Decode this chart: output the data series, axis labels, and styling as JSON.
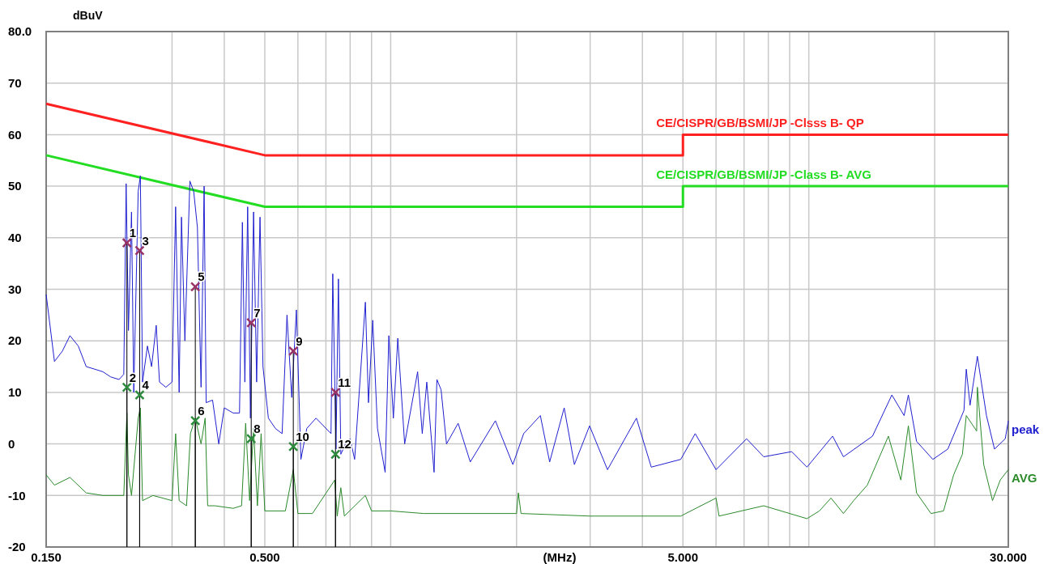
{
  "chart_data": {
    "type": "line",
    "xlabel": "(MHz)",
    "ylabel": "dBuV",
    "log": "x",
    "grid": true,
    "xlim": [
      0.15,
      30
    ],
    "ylim": [
      -20,
      80
    ],
    "xticks": [
      {
        "value": 0.15,
        "label": "0.150"
      },
      {
        "value": 0.3,
        "label": null
      },
      {
        "value": 0.4,
        "label": null
      },
      {
        "value": 0.5,
        "label": "0.500"
      },
      {
        "value": 0.6,
        "label": null
      },
      {
        "value": 0.7,
        "label": null
      },
      {
        "value": 0.8,
        "label": null
      },
      {
        "value": 0.9,
        "label": null
      },
      {
        "value": 1,
        "label": null
      },
      {
        "value": 2,
        "label": null
      },
      {
        "value": 3,
        "label": null
      },
      {
        "value": 4,
        "label": null
      },
      {
        "value": 5,
        "label": "5.000"
      },
      {
        "value": 6,
        "label": null
      },
      {
        "value": 7,
        "label": null
      },
      {
        "value": 8,
        "label": null
      },
      {
        "value": 9,
        "label": null
      },
      {
        "value": 10,
        "label": null
      },
      {
        "value": 20,
        "label": null
      },
      {
        "value": 30,
        "label": "30.000"
      }
    ],
    "yticks": [
      -20,
      -10,
      0,
      10,
      20,
      30,
      40,
      50,
      60,
      70,
      {
        "value": 80,
        "label": "80.0"
      }
    ],
    "series": [
      {
        "name": "CE/CISPR/GB/BSMI/JP -Clsss B- QP",
        "color": "#ff2020",
        "x": [
          0.15,
          0.5,
          5,
          5,
          30
        ],
        "values": [
          66,
          56,
          56,
          60,
          60
        ]
      },
      {
        "name": "CE/CISPR/GB/BSMI/JP -Class B- AVG",
        "color": "#22dd22",
        "x": [
          0.15,
          0.5,
          5,
          5,
          30
        ],
        "values": [
          56,
          46,
          46,
          50,
          50
        ]
      },
      {
        "name": "peak",
        "color": "#2020d0",
        "x": [
          0.15,
          0.157,
          0.164,
          0.171,
          0.179,
          0.187,
          0.196,
          0.205,
          0.214,
          0.224,
          0.23,
          0.233,
          0.236,
          0.24,
          0.243,
          0.249,
          0.252,
          0.255,
          0.262,
          0.268,
          0.275,
          0.28,
          0.29,
          0.3,
          0.306,
          0.312,
          0.316,
          0.322,
          0.331,
          0.338,
          0.345,
          0.352,
          0.358,
          0.362,
          0.375,
          0.388,
          0.4,
          0.42,
          0.435,
          0.442,
          0.448,
          0.455,
          0.462,
          0.47,
          0.478,
          0.487,
          0.495,
          0.51,
          0.53,
          0.55,
          0.565,
          0.58,
          0.595,
          0.61,
          0.63,
          0.663,
          0.72,
          0.727,
          0.74,
          0.75,
          0.76,
          0.78,
          0.8,
          0.82,
          0.87,
          0.885,
          0.906,
          0.93,
          0.97,
          0.99,
          1.015,
          1.04,
          1.08,
          1.16,
          1.19,
          1.22,
          1.27,
          1.29,
          1.32,
          1.36,
          1.45,
          1.55,
          1.78,
          1.96,
          2.08,
          2.28,
          2.4,
          2.6,
          2.75,
          2.99,
          3.3,
          3.87,
          4.2,
          4.94,
          5.35,
          6,
          7.1,
          7.8,
          9.1,
          9.9,
          11.4,
          12.1,
          14.2,
          15.8,
          16.9,
          17.3,
          18.1,
          19.8,
          21.5,
          23.5,
          23.8,
          24.3,
          25.3,
          26.6,
          27.8,
          29.5,
          30
        ],
        "values": [
          29,
          16,
          18,
          21,
          19,
          15,
          14.5,
          14,
          13,
          12.5,
          13.5,
          50.5,
          22,
          45,
          10,
          49,
          52,
          12,
          19,
          15,
          23,
          12,
          11,
          12,
          46,
          10,
          44,
          20,
          51,
          49,
          42,
          11,
          50,
          8,
          8.5,
          0,
          7,
          6,
          6,
          43,
          12,
          46,
          5,
          45,
          12,
          44,
          15,
          5,
          3,
          2,
          25,
          9,
          26,
          -3,
          3,
          5,
          2,
          33,
          -1,
          32,
          -2,
          0,
          1,
          -3,
          27.5,
          8,
          24,
          3,
          -5.5,
          21,
          5,
          20.5,
          0,
          14,
          2,
          12,
          -5.5,
          12.5,
          10.5,
          0,
          4,
          -3.5,
          4.5,
          -4,
          2,
          5.5,
          -3.5,
          7,
          -4,
          3.5,
          -5,
          5,
          -4.5,
          -3,
          2,
          -5,
          1,
          -2.5,
          -1.5,
          -4.5,
          1.5,
          -2.5,
          1.5,
          9.5,
          5.5,
          9.5,
          0.5,
          -3,
          -1,
          6.5,
          14.5,
          7.5,
          17,
          5.5,
          -1,
          1,
          4.5
        ]
      },
      {
        "name": "AVG",
        "color": "#2a8a2a",
        "x": [
          0.15,
          0.157,
          0.171,
          0.187,
          0.205,
          0.23,
          0.234,
          0.236,
          0.24,
          0.249,
          0.252,
          0.255,
          0.27,
          0.3,
          0.306,
          0.312,
          0.325,
          0.332,
          0.341,
          0.352,
          0.36,
          0.365,
          0.38,
          0.42,
          0.44,
          0.45,
          0.46,
          0.47,
          0.48,
          0.49,
          0.5,
          0.56,
          0.585,
          0.6,
          0.65,
          0.735,
          0.745,
          0.76,
          0.775,
          0.87,
          0.9,
          1,
          1.2,
          2,
          2.02,
          2.05,
          3,
          4.94,
          6,
          6.1,
          7.8,
          9.9,
          10.6,
          11.3,
          12.1,
          12.8,
          13.8,
          15.5,
          16.6,
          17.3,
          18.1,
          19.6,
          21,
          22.2,
          23.3,
          23.8,
          25.2,
          25.3,
          26.2,
          27.5,
          28.7,
          30
        ],
        "values": [
          -6,
          -8,
          -6.5,
          -9.5,
          -10,
          -10,
          6,
          -6,
          -10,
          5,
          7,
          -11,
          -10,
          -11,
          2,
          -11,
          -12,
          2,
          5,
          0,
          5,
          -12,
          -12,
          -12.5,
          -12,
          4,
          -11,
          3,
          -12,
          2,
          -13,
          -13,
          -5,
          -13.5,
          -13.5,
          -7,
          -14,
          -8.5,
          -14,
          -10,
          -13,
          -13,
          -13.5,
          -13.5,
          -9.5,
          -13.5,
          -14,
          -14,
          -10.5,
          -14,
          -12,
          -14.5,
          -13,
          -10.5,
          -13.5,
          -11,
          -8,
          1.5,
          -7,
          3.5,
          -9.5,
          -13.5,
          -13,
          -6,
          -2,
          5.5,
          2.5,
          11,
          -4,
          -11,
          -7,
          -5
        ]
      },
      {
        "type": "lollipop",
        "marker": "cross",
        "color": "#993366",
        "x": [
          0.234,
          0.251,
          0.341,
          0.464,
          0.585,
          0.738
        ],
        "values": [
          39,
          37.5,
          30.5,
          23.5,
          18,
          10
        ]
      },
      {
        "type": "lollipop",
        "marker": "cross",
        "color": "#2e8b3e",
        "x": [
          0.234,
          0.251,
          0.341,
          0.464,
          0.585,
          0.738
        ],
        "values": [
          11,
          9.5,
          4.5,
          1,
          -0.5,
          -2
        ]
      }
    ],
    "annotations": [
      {
        "text": "1",
        "x": 0.234,
        "y": 39
      },
      {
        "text": "2",
        "x": 0.234,
        "y": 11
      },
      {
        "text": "3",
        "x": 0.251,
        "y": 37.5
      },
      {
        "text": "4",
        "x": 0.251,
        "y": 9.5
      },
      {
        "text": "5",
        "x": 0.341,
        "y": 30.5
      },
      {
        "text": "6",
        "x": 0.341,
        "y": 4.5
      },
      {
        "text": "7",
        "x": 0.464,
        "y": 23.5
      },
      {
        "text": "8",
        "x": 0.464,
        "y": 1
      },
      {
        "text": "9",
        "x": 0.585,
        "y": 18
      },
      {
        "text": "10",
        "x": 0.585,
        "y": -0.5
      },
      {
        "text": "11",
        "x": 0.738,
        "y": 10
      },
      {
        "text": "12",
        "x": 0.738,
        "y": -2
      }
    ]
  }
}
